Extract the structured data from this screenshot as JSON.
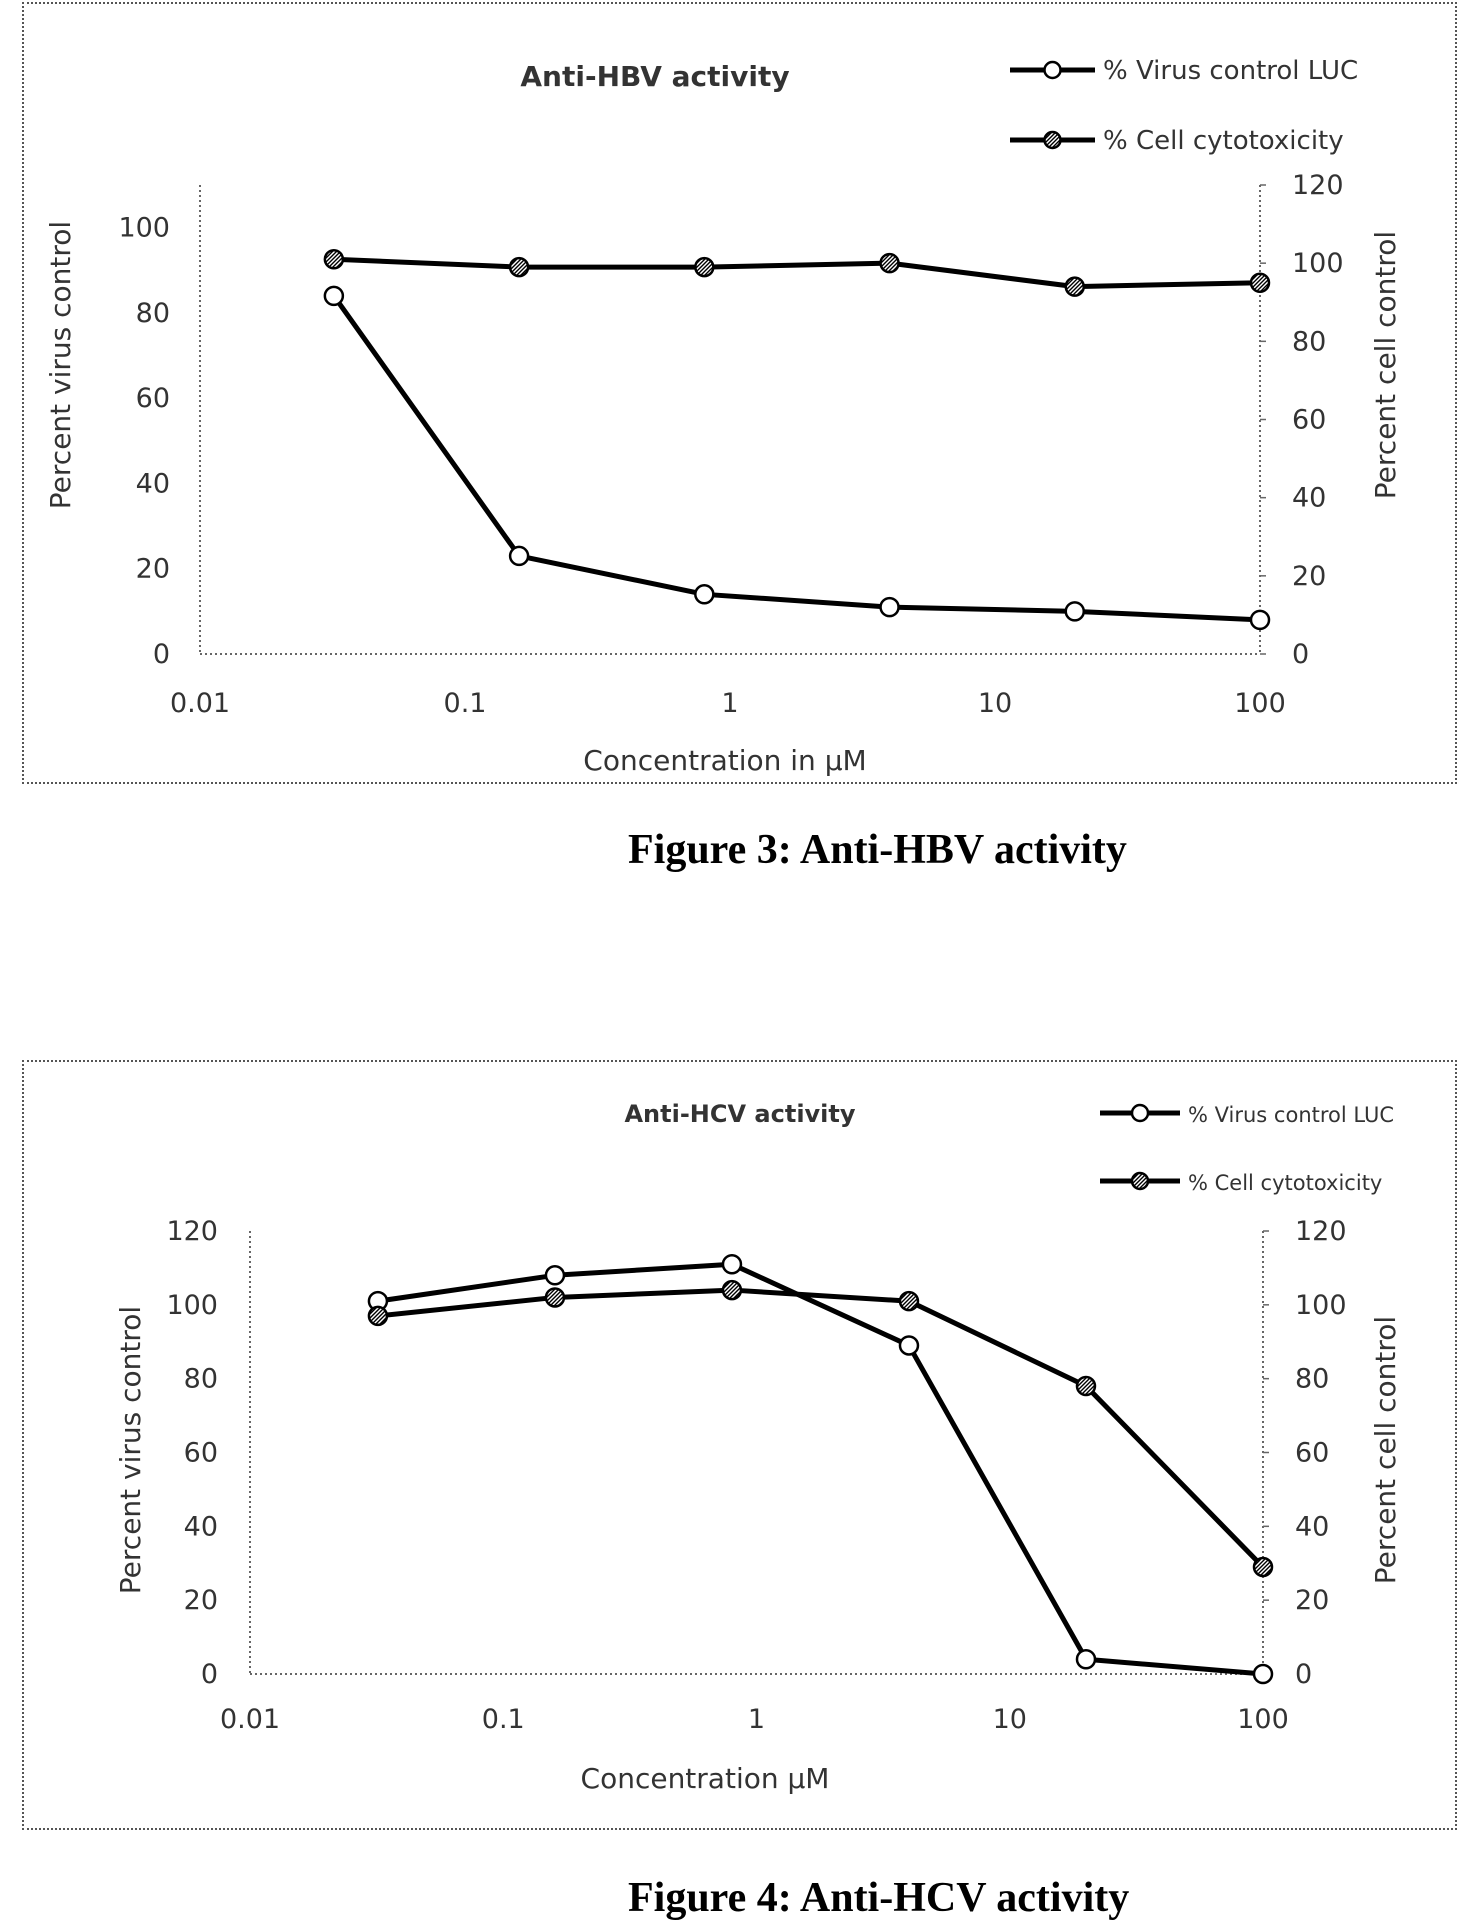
{
  "chart_data": [
    {
      "type": "line",
      "title": "Anti-HBV activity",
      "xlabel": "Concentration in µM",
      "ylabel": "Percent virus control",
      "y2label": "Percent cell control",
      "xscale": "log",
      "xlim": [
        0.01,
        100
      ],
      "x_ticks": [
        "0.01",
        "0.1",
        "1",
        "10",
        "100"
      ],
      "ylim": [
        0,
        110
      ],
      "y_ticks": [
        0,
        20,
        40,
        60,
        80,
        100
      ],
      "y2lim": [
        0,
        120
      ],
      "y2_ticks": [
        0,
        20,
        40,
        60,
        80,
        100,
        120
      ],
      "legend_position": "top-right",
      "series": [
        {
          "name": "% Virus control LUC",
          "marker": "open-circle",
          "axis": "left",
          "x": [
            0.032,
            0.16,
            0.8,
            4,
            20,
            100
          ],
          "values": [
            84,
            23,
            14,
            11,
            10,
            8
          ]
        },
        {
          "name": "% Cell cytotoxicity",
          "marker": "hatched-circle",
          "axis": "right",
          "x": [
            0.032,
            0.16,
            0.8,
            4,
            20,
            100
          ],
          "values": [
            101,
            99,
            99,
            100,
            94,
            95
          ]
        }
      ]
    },
    {
      "type": "line",
      "title": "Anti-HCV activity",
      "xlabel": "Concentration µM",
      "ylabel": "Percent virus control",
      "y2label": "Percent cell control",
      "xscale": "log",
      "xlim": [
        0.01,
        100
      ],
      "x_ticks": [
        "0.01",
        "0.1",
        "1",
        "10",
        "100"
      ],
      "ylim": [
        0,
        120
      ],
      "y_ticks": [
        0,
        20,
        40,
        60,
        80,
        100,
        120
      ],
      "y2lim": [
        0,
        120
      ],
      "y2_ticks": [
        0,
        20,
        40,
        60,
        80,
        100,
        120
      ],
      "legend_position": "top-right",
      "series": [
        {
          "name": "% Virus control LUC",
          "marker": "open-circle",
          "axis": "left",
          "x": [
            0.032,
            0.16,
            0.8,
            4,
            20,
            100
          ],
          "values": [
            101,
            108,
            111,
            89,
            4,
            0
          ]
        },
        {
          "name": "% Cell cytotoxicity",
          "marker": "hatched-circle",
          "axis": "right",
          "x": [
            0.032,
            0.16,
            0.8,
            4,
            20,
            100
          ],
          "values": [
            97,
            102,
            104,
            101,
            78,
            29
          ]
        }
      ]
    }
  ],
  "captions": {
    "figure3": "Figure 3: Anti-HBV activity",
    "figure4": "Figure 4: Anti-HCV activity"
  }
}
